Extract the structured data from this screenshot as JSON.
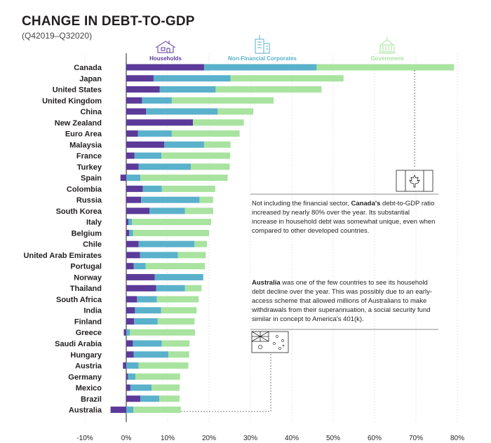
{
  "title": "CHANGE IN DEBT-TO-GDP",
  "subtitle": "(Q42019–Q32020)",
  "chart_data": {
    "type": "bar",
    "orientation": "horizontal",
    "stacked": true,
    "categories": [
      "Canada",
      "Japan",
      "United States",
      "United Kingdom",
      "China",
      "New Zealand",
      "Euro Area",
      "Malaysia",
      "France",
      "Turkey",
      "Spain",
      "Colombia",
      "Russia",
      "South Korea",
      "Italy",
      "Belgium",
      "Chile",
      "United Arab Emirates",
      "Portugal",
      "Norway",
      "Thailand",
      "South Africa",
      "India",
      "Finland",
      "Greece",
      "Saudi Arabia",
      "Hungary",
      "Austria",
      "Germany",
      "Mexico",
      "Brazil",
      "Australia"
    ],
    "series": [
      {
        "name": "Households",
        "color": "#5b3a99",
        "values": [
          18.8,
          6.6,
          8.1,
          3.8,
          4.8,
          16.1,
          2.8,
          9.2,
          2.0,
          3.0,
          -1.4,
          4.0,
          3.6,
          5.6,
          0.5,
          0.7,
          3.0,
          3.3,
          1.8,
          6.9,
          7.2,
          2.6,
          2.1,
          1.9,
          -0.6,
          1.6,
          1.8,
          -0.8,
          0.4,
          1.0,
          3.4,
          -3.8
        ]
      },
      {
        "name": "Non-Financial Corporates",
        "color": "#5ab1cb",
        "values": [
          27.2,
          18.6,
          13.5,
          7.2,
          17.3,
          0.0,
          8.2,
          9.6,
          6.5,
          12.6,
          3.4,
          4.6,
          14.1,
          8.6,
          0.9,
          0.9,
          13.5,
          9.2,
          2.9,
          11.7,
          7.0,
          4.8,
          6.3,
          5.7,
          0.9,
          7.0,
          8.4,
          3.0,
          1.8,
          5.1,
          4.6,
          1.7
        ]
      },
      {
        "name": "Government",
        "color": "#a8e3a0",
        "values": [
          33.2,
          27.3,
          25.6,
          24.6,
          8.6,
          12.3,
          16.4,
          6.4,
          16.6,
          9.4,
          21.1,
          12.9,
          3.3,
          6.8,
          19.1,
          18.4,
          3.0,
          6.7,
          14.3,
          0.0,
          4.0,
          10.1,
          8.6,
          8.9,
          15.7,
          6.7,
          5.0,
          12.0,
          10.8,
          6.8,
          4.9,
          11.5
        ]
      }
    ],
    "xlim": [
      -10,
      80
    ],
    "xticks": [
      "-10%",
      "0%",
      "10%",
      "20%",
      "30%",
      "40%",
      "50%",
      "60%",
      "70%",
      "80%"
    ],
    "xtick_values": [
      -10,
      0,
      10,
      20,
      30,
      40,
      50,
      60,
      70,
      80
    ],
    "grid": true,
    "legend_placement": "top"
  },
  "legend_icons": [
    "house-icon",
    "office-building-icon",
    "government-building-icon"
  ],
  "notes": {
    "canada": {
      "pre": "Not including the financial sector, ",
      "bold": "Canada's",
      "post": " debt-to-GDP ratio increased by nearly 80% over the year. Its substantial increase in household debt was somewhat unique, even when compared to other developed countries."
    },
    "australia": {
      "bold": "Australia",
      "post": " was one of the few countries to see its household debt decline over the year. This was possibly due to an early-access scheme that allowed millions of Australians to make withdrawals from their superannuation, a social security fund similar in concept to America's 401(k)."
    }
  }
}
